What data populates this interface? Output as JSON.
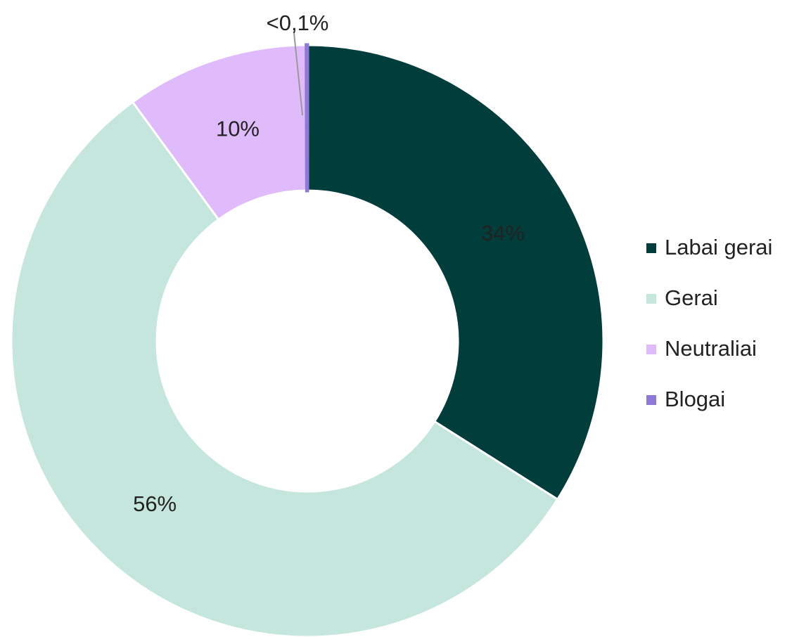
{
  "chart_data": {
    "type": "donut",
    "categories": [
      "Labai gerai",
      "Gerai",
      "Neutraliai",
      "Blogai"
    ],
    "values": [
      34,
      56,
      10,
      0.05
    ],
    "value_labels": [
      "34%",
      "56%",
      "10%",
      "<0,1%"
    ],
    "colors": [
      "#003d3b",
      "#c5e6dc",
      "#e0bbfc",
      "#8e7ad6"
    ],
    "legend": "right"
  }
}
